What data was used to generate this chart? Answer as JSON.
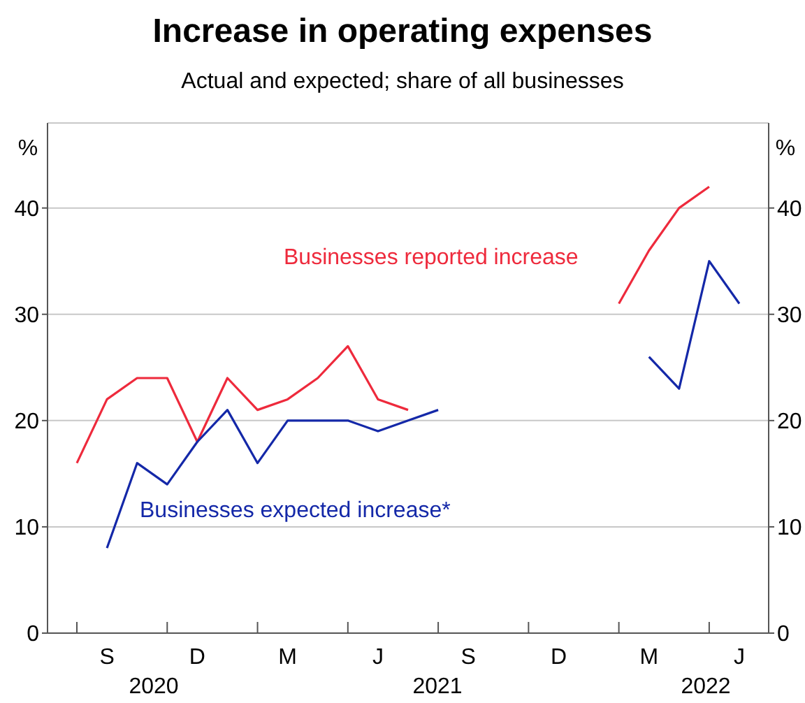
{
  "chart_data": {
    "type": "line",
    "title": "Increase in operating expenses",
    "subtitle": "Actual and expected; share of all businesses",
    "ylabel": "%",
    "y2label": "%",
    "categories": [
      null,
      "S",
      null,
      null,
      "D",
      null,
      null,
      "M",
      null,
      null,
      "J",
      null,
      null,
      "S",
      null,
      null,
      "D",
      null,
      null,
      "M",
      null,
      null,
      "J"
    ],
    "series": [
      {
        "name": "Businesses reported increase",
        "color": "#ee2a3c",
        "values": [
          16,
          22,
          24,
          24,
          18,
          24,
          21,
          22,
          24,
          27,
          22,
          21,
          null,
          null,
          null,
          null,
          null,
          null,
          31,
          36,
          40,
          42,
          null
        ]
      },
      {
        "name": "Businesses expected increase*",
        "color": "#1428a8",
        "values": [
          null,
          8,
          16,
          14,
          18,
          21,
          16,
          20,
          20,
          20,
          19,
          20,
          21,
          null,
          null,
          null,
          null,
          null,
          null,
          26,
          23,
          35,
          31
        ]
      }
    ],
    "annotations": [
      "2020",
      "2021",
      "2022"
    ],
    "ylim": [
      0,
      48
    ],
    "yticks": [
      0,
      10,
      20,
      30,
      40
    ],
    "y2lim": [
      0,
      48
    ],
    "y2ticks": [
      0,
      10,
      20,
      30,
      40
    ],
    "grid": "y",
    "legend": false,
    "marker": "none",
    "line_style": "solid"
  }
}
